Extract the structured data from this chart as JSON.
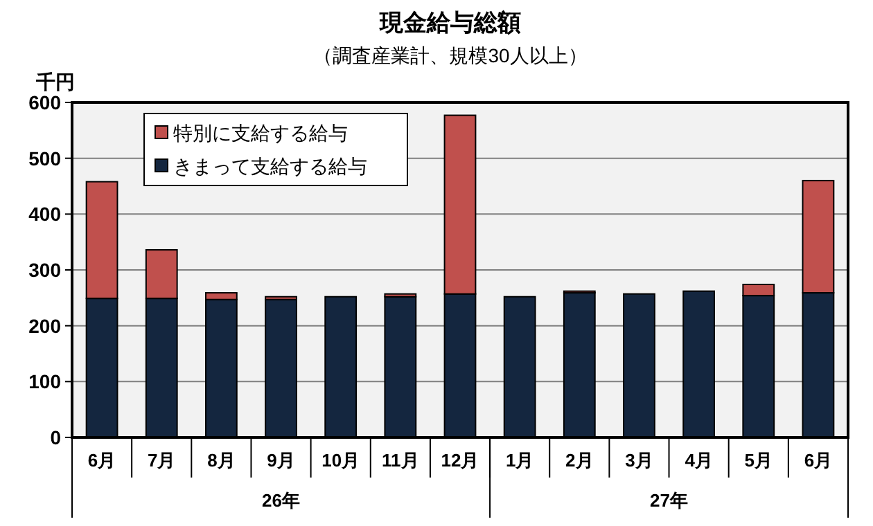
{
  "chart_data": {
    "type": "bar",
    "title": "現金給与総額",
    "subtitle": "（調査産業計、規模30人以上）",
    "ylabel": "千円",
    "categories": [
      "6月",
      "7月",
      "8月",
      "9月",
      "10月",
      "11月",
      "12月",
      "1月",
      "2月",
      "3月",
      "4月",
      "5月",
      "6月"
    ],
    "annotations": [
      "26年",
      "27年"
    ],
    "stacked": true,
    "series": [
      {
        "name": "きまって支給する給与",
        "color": "#14263f",
        "values": [
          249,
          249,
          247,
          247,
          252,
          252,
          257,
          252,
          259,
          257,
          262,
          254,
          259
        ]
      },
      {
        "name": "特別に支給する給与",
        "color": "#c0504d",
        "values": [
          209,
          87,
          12,
          5,
          null,
          5,
          320,
          null,
          3,
          null,
          null,
          20,
          201
        ]
      }
    ],
    "ylim": [
      0,
      600
    ],
    "yticks": [
      0,
      100,
      200,
      300,
      400,
      500,
      600
    ],
    "grid": "y",
    "legend": "top left"
  }
}
